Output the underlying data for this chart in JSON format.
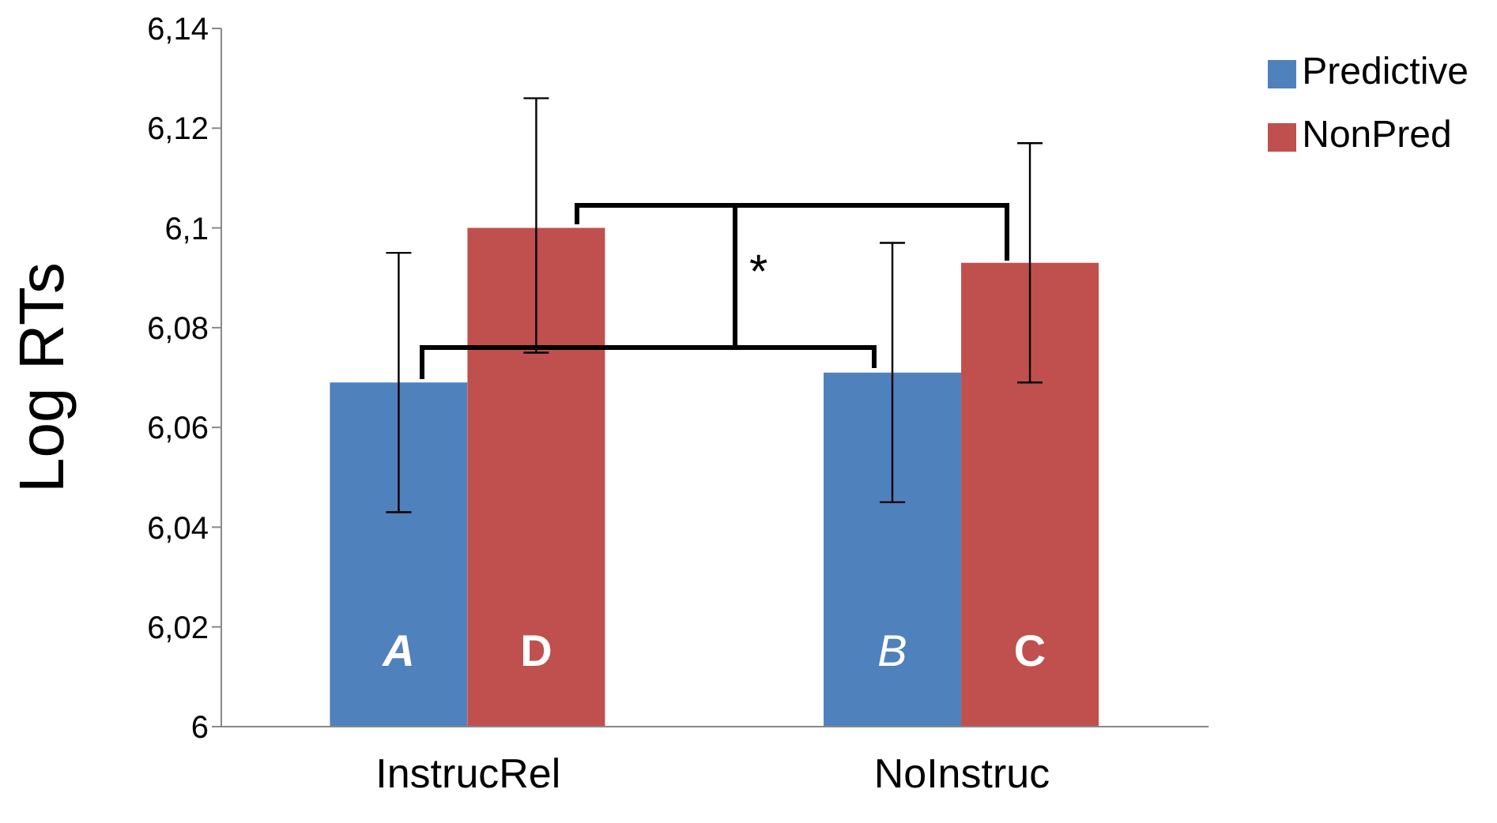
{
  "chart_data": {
    "type": "bar",
    "ylabel": "Log RTs",
    "categories": [
      "InstrucRel",
      "NoInstruc"
    ],
    "series": [
      {
        "name": "Predictive",
        "color": "#4f81bd",
        "values": [
          6.069,
          6.071
        ],
        "errors": [
          [
            6.043,
            6.095
          ],
          [
            6.045,
            6.097
          ]
        ],
        "value_labels": [
          "A",
          "B"
        ]
      },
      {
        "name": "NonPred",
        "color": "#c0504d",
        "values": [
          6.1,
          6.093
        ],
        "errors": [
          [
            6.075,
            6.126
          ],
          [
            6.069,
            6.117
          ]
        ],
        "value_labels": [
          "D",
          "C"
        ]
      }
    ],
    "ylim": [
      6,
      6.14
    ],
    "yticks": [
      6,
      {
        "value": 6.02,
        "label": "6,02"
      },
      {
        "value": 6.04,
        "label": "6,04"
      },
      {
        "value": 6.06,
        "label": "6,06"
      },
      {
        "value": 6.08,
        "label": "6,08"
      },
      {
        "value": 6.1,
        "label": "6,1"
      },
      {
        "value": 6.12,
        "label": "6,12"
      },
      {
        "value": 6.14,
        "label": "6,14"
      }
    ],
    "grid": false,
    "legend": "top right",
    "annotations": [
      "*"
    ]
  }
}
